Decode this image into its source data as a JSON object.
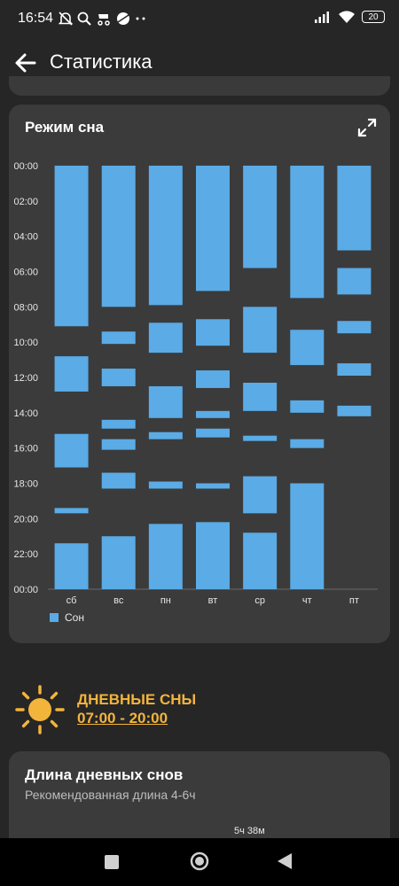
{
  "status_bar": {
    "time": "16:54",
    "battery": "20",
    "icons_left": [
      "bell-off-icon",
      "search-icon",
      "stroller-icon",
      "ball-icon",
      "more-dots-icon"
    ],
    "icons_right": [
      "signal-icon",
      "wifi-icon",
      "battery-icon"
    ]
  },
  "app_bar": {
    "title": "Статистика",
    "back_icon": "arrow-left-icon"
  },
  "sleep_chart_card": {
    "title": "Режим сна",
    "expand_icon": "expand-icon"
  },
  "chart_data": {
    "type": "bar",
    "title": "Режим сна",
    "y_axis_reversed": true,
    "ylim": [
      0,
      24
    ],
    "y_tick_labels": [
      "00:00",
      "02:00",
      "04:00",
      "06:00",
      "08:00",
      "10:00",
      "12:00",
      "14:00",
      "16:00",
      "18:00",
      "20:00",
      "22:00",
      "00:00"
    ],
    "categories": [
      "сб",
      "вс",
      "пн",
      "вт",
      "ср",
      "чт",
      "пт"
    ],
    "legend_position": "bottom-left",
    "series": [
      {
        "name": "Сон",
        "color": "#5aabe6",
        "intervals": [
          [
            [
              0,
              9.1
            ],
            [
              10.8,
              12.8
            ],
            [
              15.2,
              17.1
            ],
            [
              19.4,
              19.7
            ],
            [
              21.4,
              24
            ]
          ],
          [
            [
              0,
              8.0
            ],
            [
              9.4,
              10.1
            ],
            [
              11.5,
              12.5
            ],
            [
              14.4,
              14.9
            ],
            [
              15.5,
              16.1
            ],
            [
              17.4,
              18.3
            ],
            [
              21.0,
              24
            ]
          ],
          [
            [
              0,
              7.9
            ],
            [
              8.9,
              10.6
            ],
            [
              12.5,
              14.3
            ],
            [
              15.1,
              15.5
            ],
            [
              17.9,
              18.3
            ],
            [
              20.3,
              24
            ]
          ],
          [
            [
              0,
              7.1
            ],
            [
              8.7,
              10.2
            ],
            [
              11.6,
              12.6
            ],
            [
              13.9,
              14.3
            ],
            [
              14.9,
              15.4
            ],
            [
              18.0,
              18.3
            ],
            [
              20.2,
              24
            ]
          ],
          [
            [
              0,
              5.8
            ],
            [
              8.0,
              10.6
            ],
            [
              12.3,
              13.9
            ],
            [
              15.3,
              15.6
            ],
            [
              17.6,
              19.7
            ],
            [
              20.8,
              24
            ]
          ],
          [
            [
              0,
              7.5
            ],
            [
              9.3,
              11.3
            ],
            [
              13.3,
              14.0
            ],
            [
              15.5,
              16.0
            ],
            [
              18.0,
              24
            ]
          ],
          [
            [
              0,
              4.8
            ],
            [
              5.8,
              7.3
            ],
            [
              8.8,
              9.5
            ],
            [
              11.2,
              11.9
            ],
            [
              13.6,
              14.2
            ]
          ]
        ]
      }
    ]
  },
  "daytime_naps": {
    "icon": "sun-icon",
    "title": "ДНЕВНЫЕ СНЫ",
    "time_range": "07:00 - 20:00"
  },
  "nap_length_card": {
    "title": "Длина дневных снов",
    "subtitle": "Рекомендованная длина 4-6ч",
    "value_label": "5ч 38м"
  },
  "nav_bar": {
    "buttons": [
      "recents-button",
      "home-button",
      "back-button"
    ]
  }
}
